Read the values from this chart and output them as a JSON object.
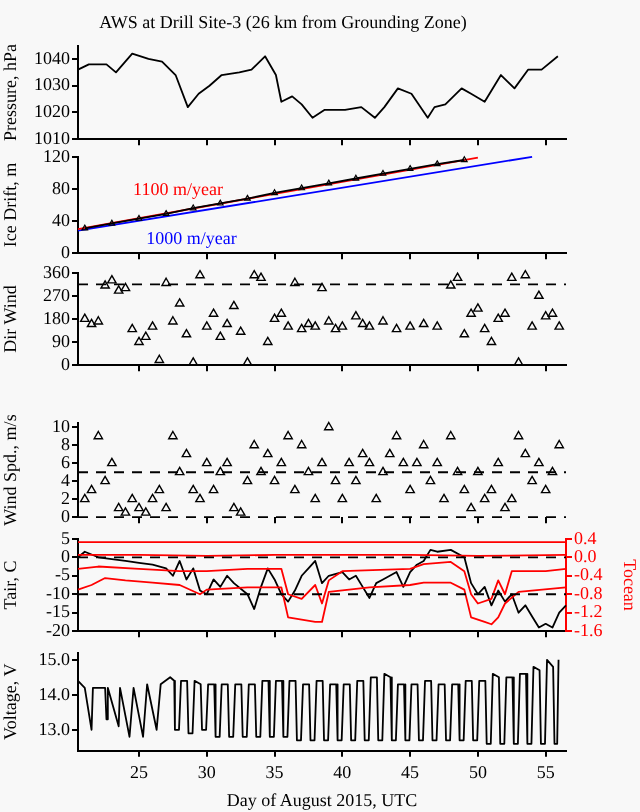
{
  "chart_data": [
    {
      "type": "line",
      "title": "AWS at Drill Site-3 (26 km from Grounding Zone)",
      "ylabel": "Pressure, hPa",
      "color": "#000000",
      "x": [
        20.5,
        21.3,
        22.6,
        23.3,
        24.5,
        25.7,
        26.7,
        27.7,
        28.6,
        29.4,
        30.2,
        31.1,
        32.4,
        33.3,
        34.3,
        35.1,
        35.5,
        36.3,
        37,
        37.8,
        38.7,
        40.2,
        41.4,
        42.4,
        43.1,
        44.1,
        45.1,
        46.3,
        46.8,
        47.6,
        48.8,
        49.5,
        50.5,
        51.7,
        52.7,
        53.7,
        54.7,
        55.9
      ],
      "values": [
        1036,
        1038,
        1038,
        1035,
        1042,
        1040,
        1039,
        1034,
        1022,
        1027,
        1030,
        1034,
        1035,
        1036,
        1041,
        1034,
        1024,
        1026,
        1023,
        1018,
        1021,
        1021,
        1022,
        1018,
        1022,
        1029,
        1027,
        1018,
        1022,
        1023,
        1029,
        1027,
        1024,
        1034,
        1029,
        1036,
        1036,
        1041
      ],
      "xlim": [
        20.5,
        56.5
      ],
      "xticks": [
        25,
        30,
        35,
        40,
        45,
        50,
        55
      ],
      "ylim": [
        1010,
        1045
      ],
      "yticks": [
        1010,
        1020,
        1030,
        1040
      ],
      "tick_labels": "y"
    },
    {
      "type": "line",
      "ylabel": "Ice Drift, m",
      "xlim": [
        20.5,
        56.5
      ],
      "xticks": [
        25,
        30,
        35,
        40,
        45,
        50,
        55
      ],
      "ylim": [
        0,
        120
      ],
      "yticks": [
        0,
        40,
        80,
        120
      ],
      "tick_labels": "y",
      "series": [
        {
          "color": "#000000",
          "marker": "triangle",
          "x": [
            21,
            23,
            25,
            27,
            29,
            31,
            33,
            35,
            37,
            39,
            41,
            43,
            45,
            47,
            49
          ],
          "values": [
            31,
            37,
            43,
            49,
            56,
            62,
            68,
            75,
            81,
            87,
            93,
            99,
            105,
            111,
            116
          ]
        },
        {
          "name": "1100 m/year",
          "color": "#ff0000",
          "x": [
            20.5,
            50
          ],
          "values": [
            30,
            119
          ]
        },
        {
          "name": "1000 m/year",
          "color": "#0000ff",
          "x": [
            20.5,
            54
          ],
          "values": [
            28,
            120
          ]
        }
      ]
    },
    {
      "type": "scatter",
      "ylabel": "Dir Wind",
      "marker": "triangle",
      "color": "#000000",
      "xlim": [
        20.5,
        56.5
      ],
      "xticks": [
        25,
        30,
        35,
        40,
        45,
        50,
        55
      ],
      "ylim": [
        0,
        360
      ],
      "yticks": [
        0,
        90,
        180,
        270,
        360
      ],
      "tick_labels": "y",
      "x": [
        21,
        21.5,
        22,
        22.5,
        23,
        23.5,
        24,
        24.5,
        25,
        25.5,
        26,
        26.5,
        27,
        27.5,
        28,
        28.5,
        29,
        29.5,
        30,
        30.5,
        31,
        31.5,
        32,
        32.5,
        33,
        33.5,
        34,
        34.5,
        35,
        35.5,
        36,
        36.5,
        37,
        37.5,
        38,
        38.5,
        39,
        39.5,
        40,
        41,
        41.5,
        42,
        43,
        44,
        45,
        46,
        47,
        48,
        48.5,
        49,
        49.5,
        50,
        50.5,
        51,
        51.5,
        52,
        52.5,
        53,
        53.5,
        54,
        54.5,
        55,
        55.5,
        56
      ],
      "values": [
        180,
        160,
        170,
        310,
        330,
        290,
        300,
        140,
        90,
        110,
        150,
        20,
        320,
        170,
        240,
        120,
        10,
        350,
        150,
        200,
        110,
        160,
        230,
        130,
        10,
        350,
        340,
        90,
        180,
        200,
        150,
        320,
        140,
        160,
        150,
        300,
        170,
        140,
        150,
        190,
        160,
        150,
        170,
        140,
        150,
        160,
        150,
        310,
        340,
        120,
        200,
        220,
        140,
        90,
        180,
        200,
        340,
        10,
        350,
        150,
        270,
        190,
        200,
        150
      ],
      "ref_lines": [
        {
          "axis": "y",
          "value": 315,
          "line_style": "dashed"
        }
      ]
    },
    {
      "type": "scatter",
      "ylabel": "Wind Spd., m/s",
      "marker": "triangle",
      "color": "#000000",
      "xlim": [
        20.5,
        56.5
      ],
      "xticks": [
        25,
        30,
        35,
        40,
        45,
        50,
        55
      ],
      "ylim": [
        0,
        10.5
      ],
      "yticks": [
        0,
        2,
        4,
        6,
        8,
        10
      ],
      "tick_labels": "y",
      "x": [
        21,
        21.5,
        22,
        22.5,
        23,
        23.5,
        24,
        24.5,
        25,
        25.5,
        26,
        26.5,
        27,
        27.5,
        28,
        28.5,
        29,
        29.5,
        30,
        30.5,
        31,
        31.5,
        32,
        32.5,
        33,
        33.5,
        34,
        34.5,
        35,
        35.5,
        36,
        36.5,
        37,
        37.5,
        38,
        38.5,
        39,
        39.5,
        40,
        40.5,
        41,
        41.5,
        42,
        42.5,
        43,
        43.5,
        44,
        44.5,
        45,
        45.5,
        46,
        46.5,
        47,
        47.5,
        48,
        48.5,
        49,
        49.5,
        50,
        50.5,
        51,
        51.5,
        52,
        52.5,
        53,
        53.5,
        54,
        54.5,
        55,
        55.5,
        56
      ],
      "values": [
        2,
        3,
        9,
        4,
        6,
        1,
        0.5,
        2,
        1,
        0.5,
        2,
        3,
        1,
        9,
        5,
        7,
        3,
        2,
        6,
        3,
        5,
        6,
        1,
        0.5,
        4,
        8,
        5,
        7,
        4,
        6,
        9,
        3,
        8,
        5,
        2,
        6,
        10,
        4,
        2,
        6,
        4,
        7,
        6,
        2,
        5,
        7,
        9,
        6,
        3,
        6,
        8,
        4,
        6,
        2,
        9,
        5,
        3,
        1,
        5,
        2,
        3,
        6,
        1,
        2,
        9,
        7,
        4,
        6,
        3,
        5,
        8
      ],
      "ref_lines": [
        {
          "axis": "y",
          "value": 5,
          "line_style": "dashed"
        },
        {
          "axis": "y",
          "value": 0,
          "line_style": "dashed"
        }
      ]
    },
    {
      "type": "line",
      "ylabel": "Tair, C",
      "y2label": "Tocean",
      "xlim": [
        20.5,
        56.5
      ],
      "xticks": [
        25,
        30,
        35,
        40,
        45,
        50,
        55
      ],
      "ylim": [
        -20,
        5
      ],
      "yticks": [
        5,
        0,
        -5,
        -10,
        -15,
        -20
      ],
      "y2lim": [
        -1.6,
        0.4
      ],
      "y2ticks": [
        0.4,
        {
          "value": 0,
          "label": "0.0"
        },
        -0.4,
        -0.8,
        -1.2,
        -1.6
      ],
      "tick_labels": "y",
      "ref_lines": [
        {
          "axis": "y",
          "value": 0,
          "line_style": "dashed"
        },
        {
          "axis": "y",
          "value": -10,
          "line_style": "dashed"
        }
      ],
      "series": [
        {
          "color": "#ff0000",
          "axis": "y2",
          "x": [
            20.5,
            56.5
          ],
          "values": [
            0.33,
            0.33
          ]
        },
        {
          "color": "#ff0000",
          "axis": "y2",
          "x": [
            20.5,
            25,
            30,
            35,
            40,
            45,
            50,
            56.5
          ],
          "values": [
            0.05,
            0.05,
            0.03,
            0.05,
            0.05,
            0.05,
            0.03,
            0.05
          ]
        },
        {
          "color": "#ff0000",
          "axis": "y2",
          "x": [
            20.5,
            22,
            25,
            28,
            30,
            33,
            35.5,
            36,
            37,
            38,
            38.5,
            39,
            40,
            45,
            46,
            48,
            49,
            49.5,
            50,
            51,
            51.5,
            52,
            52.5,
            55,
            56.5
          ],
          "values": [
            -0.25,
            -0.2,
            -0.25,
            -0.3,
            -0.3,
            -0.25,
            -0.25,
            -0.8,
            -0.9,
            -0.6,
            -1.0,
            -0.5,
            -0.3,
            -0.25,
            -0.15,
            -0.1,
            -0.3,
            -0.8,
            -1.0,
            -0.9,
            -0.5,
            -0.8,
            -0.3,
            -0.3,
            -0.25
          ]
        },
        {
          "color": "#ff0000",
          "axis": "y2",
          "x": [
            20.5,
            21.5,
            22.5,
            24,
            26,
            28,
            29.5,
            30,
            33,
            35.5,
            36,
            37,
            38,
            38.5,
            39,
            42,
            45,
            46,
            48,
            49,
            49.5,
            50.5,
            51,
            51.5,
            52,
            53,
            56.5
          ],
          "values": [
            -0.7,
            -0.6,
            -0.45,
            -0.5,
            -0.55,
            -0.6,
            -0.8,
            -0.7,
            -0.65,
            -0.65,
            -1.3,
            -1.35,
            -1.4,
            -1.4,
            -0.75,
            -0.65,
            -0.6,
            -0.55,
            -0.55,
            -0.7,
            -1.3,
            -1.4,
            -1.45,
            -1.3,
            -1.0,
            -0.75,
            -0.65
          ]
        },
        {
          "color": "#000000",
          "x": [
            20.5,
            21,
            22,
            23,
            24,
            25,
            26,
            27,
            27.5,
            28,
            28.5,
            29,
            29.5,
            30,
            30.5,
            31,
            31.5,
            32,
            33,
            33.5,
            34,
            34.5,
            35,
            35.5,
            36,
            36.5,
            37,
            37.5,
            38,
            38.5,
            39,
            40,
            40.5,
            41,
            41.5,
            42,
            42.5,
            43,
            44,
            44.5,
            45,
            45.5,
            46,
            46.5,
            47,
            48,
            49,
            49.5,
            50,
            50.5,
            51,
            51.5,
            52,
            52.5,
            53,
            53.5,
            54,
            54.5,
            55,
            55.5,
            56,
            56.5
          ],
          "values": [
            0,
            1.5,
            0,
            -0.5,
            -1,
            -1.5,
            -2,
            -3,
            -5,
            -1,
            -6,
            -3,
            -9,
            -10,
            -6,
            -8,
            -5,
            -7,
            -10,
            -14,
            -8,
            -3,
            -6,
            -10,
            -12,
            -9,
            -5,
            -3,
            -1,
            -7,
            -5,
            -4,
            -6,
            -5,
            -8,
            -11,
            -7,
            -6,
            -4,
            -8,
            -4,
            -2,
            -1,
            2,
            1.5,
            2,
            0,
            -7,
            -10,
            -8,
            -13,
            -9,
            -12,
            -10,
            -15,
            -13,
            -16,
            -19,
            -18,
            -19,
            -15,
            -13
          ]
        }
      ]
    },
    {
      "type": "line",
      "ylabel": "Voltage, V",
      "xlabel": "Day of August 2015, UTC",
      "color": "#000000",
      "xlim": [
        20.5,
        56.5
      ],
      "xticks": [
        25,
        30,
        35,
        40,
        45,
        50,
        55
      ],
      "ylim": [
        12.4,
        15.2
      ],
      "yticks": [
        {
          "value": 13,
          "label": "13.0"
        },
        {
          "value": 14,
          "label": "14.0"
        },
        {
          "value": 15,
          "label": "15.0"
        }
      ],
      "x": [
        20.5,
        21,
        21.5,
        21.6,
        22.5,
        22.6,
        22.7,
        23.5,
        23.6,
        24.3,
        24.6,
        25.3,
        25.6,
        26.3,
        26.6,
        27.3,
        27.6,
        27.65,
        27.95,
        28.1,
        28.55,
        28.65,
        28.95,
        29.1,
        29.55,
        29.65,
        29.95,
        30.1,
        30.55,
        30.65,
        30.95,
        31.1,
        31.55,
        31.65,
        31.95,
        32.1,
        32.55,
        32.65,
        32.95,
        33.1,
        33.55,
        33.65,
        33.95,
        34.1,
        34.55,
        34.65,
        34.95,
        35.1,
        35.55,
        35.65,
        35.95,
        36.1,
        36.55,
        36.65,
        36.95,
        37.1,
        37.55,
        37.65,
        37.95,
        38.1,
        38.55,
        38.65,
        38.95,
        39.1,
        39.55,
        39.65,
        39.95,
        40.1,
        40.55,
        40.65,
        40.95,
        41.1,
        41.55,
        41.65,
        41.95,
        42.1,
        42.55,
        42.65,
        42.95,
        43.1,
        43.55,
        43.65,
        43.95,
        44.1,
        44.55,
        44.65,
        44.95,
        45.1,
        45.55,
        45.65,
        45.95,
        46.1,
        46.55,
        46.65,
        46.95,
        47.1,
        47.55,
        47.65,
        47.95,
        48.1,
        48.55,
        48.65,
        48.95,
        49.1,
        49.55,
        49.65,
        49.95,
        50.1,
        50.55,
        50.65,
        50.95,
        51.1,
        51.55,
        51.65,
        51.95,
        52.1,
        52.55,
        52.65,
        52.95,
        53.1,
        53.55,
        53.65,
        53.95,
        54.1,
        54.55,
        54.65,
        54.95,
        55.1,
        55.55,
        55.65,
        55.85,
        55.95
      ],
      "values": [
        14.4,
        14.2,
        13.0,
        14.2,
        14.2,
        13.3,
        14.2,
        13.1,
        14.2,
        12.8,
        14.2,
        12.8,
        14.3,
        13.0,
        14.3,
        14.5,
        14.4,
        13.0,
        13.0,
        14.4,
        14.4,
        12.9,
        12.9,
        14.4,
        14.3,
        13.0,
        13.0,
        14.3,
        14.3,
        12.8,
        12.8,
        14.3,
        14.3,
        12.8,
        12.8,
        14.3,
        14.3,
        12.8,
        12.8,
        14.3,
        14.3,
        12.8,
        12.8,
        14.4,
        14.4,
        12.8,
        12.8,
        14.4,
        14.4,
        12.8,
        12.8,
        14.4,
        14.4,
        12.7,
        12.7,
        14.3,
        14.3,
        12.7,
        12.7,
        14.4,
        14.4,
        12.7,
        12.7,
        14.3,
        14.3,
        12.7,
        12.7,
        14.3,
        14.3,
        12.7,
        12.7,
        14.4,
        14.4,
        12.7,
        12.7,
        14.5,
        14.5,
        12.7,
        12.7,
        14.6,
        14.5,
        12.7,
        12.7,
        14.3,
        14.3,
        12.7,
        12.7,
        14.3,
        14.3,
        12.7,
        12.7,
        14.4,
        14.4,
        12.7,
        12.7,
        14.3,
        14.3,
        12.7,
        12.7,
        14.3,
        14.3,
        12.7,
        12.7,
        14.4,
        14.4,
        12.7,
        12.7,
        14.4,
        14.4,
        12.6,
        12.6,
        14.6,
        14.5,
        12.6,
        12.6,
        14.5,
        14.5,
        12.6,
        12.6,
        14.6,
        14.6,
        12.6,
        12.6,
        14.8,
        14.7,
        12.6,
        12.6,
        15.0,
        14.8,
        12.6,
        12.6,
        15.0
      ]
    }
  ]
}
